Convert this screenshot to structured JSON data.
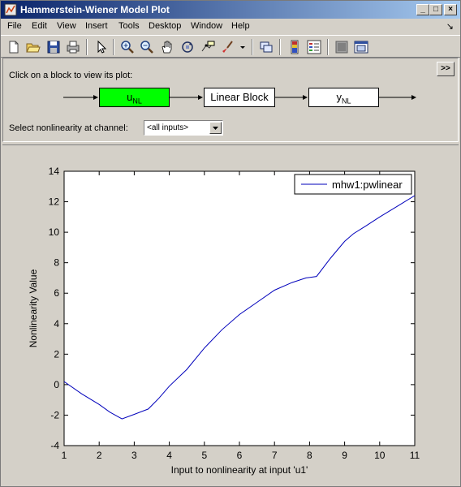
{
  "window": {
    "title": "Hammerstein-Wiener Model Plot",
    "buttons": {
      "minimize": "_",
      "maximize": "□",
      "close": "×"
    }
  },
  "menu": {
    "items": [
      "File",
      "Edit",
      "View",
      "Insert",
      "Tools",
      "Desktop",
      "Window",
      "Help"
    ],
    "dock_arrow": "↘"
  },
  "toolbar": {
    "tools": [
      "new-figure-icon",
      "open-icon",
      "save-icon",
      "print-icon",
      "select-arrow-icon",
      "zoom-in-icon",
      "zoom-out-icon",
      "pan-hand-icon",
      "rotate-3d-icon",
      "data-cursor-icon",
      "brush-icon",
      "brush-dropdown-icon",
      "link-icon",
      "colorbar-icon",
      "legend-icon",
      "hide-plot-tools-icon",
      "show-plot-tools-icon"
    ]
  },
  "panel": {
    "hint": "Click on a block to view its plot:",
    "expand_label": ">>",
    "blocks": {
      "input_nl": {
        "main": "u",
        "sub": "NL",
        "color": "#00ff00"
      },
      "linear": {
        "label": "Linear Block",
        "color": "#ffffff"
      },
      "output_nl": {
        "main": "y",
        "sub": "NL",
        "color": "#ffffff"
      }
    },
    "select_label": "Select nonlinearity at channel:",
    "select_value": "<all inputs>"
  },
  "chart_data": {
    "type": "line",
    "xlabel": "Input to nonlinearity at input 'u1'",
    "ylabel": "Nonlinearity Value",
    "xlim": [
      1,
      11
    ],
    "ylim": [
      -4,
      14
    ],
    "xticks": [
      "1",
      "2",
      "3",
      "4",
      "5",
      "6",
      "7",
      "8",
      "9",
      "10",
      "11"
    ],
    "yticks": [
      "-4",
      "-2",
      "0",
      "2",
      "4",
      "6",
      "8",
      "10",
      "12",
      "14"
    ],
    "grid": false,
    "legend_position": "top-right",
    "line_color": "#0000bb",
    "series": [
      {
        "name": "mhw1:pwlinear",
        "x": [
          1.0,
          1.5,
          2.0,
          2.3,
          2.65,
          3.0,
          3.4,
          3.7,
          4.0,
          4.5,
          5.0,
          5.5,
          6.0,
          6.5,
          7.0,
          7.5,
          7.9,
          8.2,
          8.6,
          9.0,
          9.25,
          9.6,
          10.0,
          10.5,
          11.0
        ],
        "y": [
          0.2,
          -0.6,
          -1.3,
          -1.8,
          -2.25,
          -1.95,
          -1.6,
          -0.9,
          -0.1,
          1.0,
          2.4,
          3.6,
          4.6,
          5.4,
          6.2,
          6.7,
          7.0,
          7.1,
          8.3,
          9.4,
          9.9,
          10.4,
          11.0,
          11.7,
          12.4
        ]
      }
    ]
  }
}
